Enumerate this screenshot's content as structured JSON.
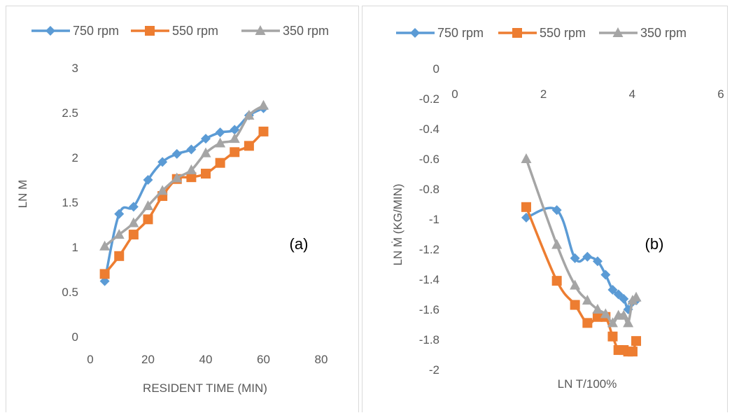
{
  "chart_data": [
    {
      "type": "line",
      "panel_label": "(a)",
      "xlabel": "RESIDENT TIME (MIN)",
      "ylabel": "LN M",
      "xlim": [
        0,
        80
      ],
      "ylim": [
        0,
        3
      ],
      "xticks": [
        "0",
        "20",
        "40",
        "60",
        "80"
      ],
      "yticks": [
        "0",
        "0.5",
        "1",
        "1.5",
        "2",
        "2.5",
        "3"
      ],
      "xtick_values": [
        0,
        20,
        40,
        60,
        80
      ],
      "ytick_values": [
        0,
        0.5,
        1,
        1.5,
        2,
        2.5,
        3
      ],
      "grid": false,
      "legend_position": "top",
      "series": [
        {
          "name": "750 rpm",
          "color": "#5b9bd5",
          "marker": "diamond",
          "x": [
            5,
            10,
            15,
            20,
            25,
            30,
            35,
            40,
            45,
            50,
            55,
            60
          ],
          "y": [
            0.62,
            1.37,
            1.45,
            1.75,
            1.95,
            2.04,
            2.09,
            2.21,
            2.28,
            2.31,
            2.47,
            2.55
          ]
        },
        {
          "name": "550 rpm",
          "color": "#ed7d31",
          "marker": "square",
          "x": [
            5,
            10,
            15,
            20,
            25,
            30,
            35,
            40,
            45,
            50,
            55,
            60
          ],
          "y": [
            0.7,
            0.9,
            1.14,
            1.31,
            1.57,
            1.76,
            1.78,
            1.82,
            1.94,
            2.06,
            2.13,
            2.29
          ]
        },
        {
          "name": "350 rpm",
          "color": "#a5a5a5",
          "marker": "triangle",
          "x": [
            5,
            10,
            15,
            20,
            25,
            30,
            35,
            40,
            45,
            50,
            55,
            60
          ],
          "y": [
            1.01,
            1.14,
            1.27,
            1.46,
            1.63,
            1.77,
            1.86,
            2.05,
            2.16,
            2.21,
            2.47,
            2.58
          ]
        }
      ]
    },
    {
      "type": "line",
      "panel_label": "(b)",
      "xlabel": "LN T/100%",
      "ylabel": "LN Ṁ (KG/MIN)",
      "xlim": [
        0,
        6
      ],
      "ylim": [
        -2,
        0
      ],
      "xticks": [
        "0",
        "2",
        "4",
        "6"
      ],
      "yticks": [
        "-2",
        "-1.8",
        "-1.6",
        "-1.4",
        "-1.2",
        "-1",
        "-0.8",
        "-0.6",
        "-0.4",
        "-0.2",
        "0"
      ],
      "xtick_values": [
        0,
        2,
        4,
        6
      ],
      "ytick_values": [
        -2,
        -1.8,
        -1.6,
        -1.4,
        -1.2,
        -1,
        -0.8,
        -0.6,
        -0.4,
        -0.2,
        0
      ],
      "grid": false,
      "legend_position": "top",
      "series": [
        {
          "name": "750 rpm",
          "color": "#5b9bd5",
          "marker": "diamond",
          "x": [
            1.61,
            2.3,
            2.71,
            2.99,
            3.22,
            3.4,
            3.56,
            3.69,
            3.81,
            3.91,
            4.01,
            4.09
          ],
          "y": [
            -0.99,
            -0.94,
            -1.26,
            -1.25,
            -1.28,
            -1.37,
            -1.47,
            -1.5,
            -1.53,
            -1.6,
            -1.55,
            -1.54
          ]
        },
        {
          "name": "550 rpm",
          "color": "#ed7d31",
          "marker": "square",
          "x": [
            1.61,
            2.3,
            2.71,
            2.99,
            3.22,
            3.4,
            3.56,
            3.69,
            3.81,
            3.91,
            4.01,
            4.09
          ],
          "y": [
            -0.92,
            -1.41,
            -1.57,
            -1.69,
            -1.65,
            -1.65,
            -1.78,
            -1.87,
            -1.87,
            -1.88,
            -1.88,
            -1.81
          ]
        },
        {
          "name": "350 rpm",
          "color": "#a5a5a5",
          "marker": "triangle",
          "x": [
            1.61,
            2.3,
            2.71,
            2.99,
            3.22,
            3.4,
            3.56,
            3.69,
            3.81,
            3.91,
            4.01,
            4.09
          ],
          "y": [
            -0.6,
            -1.17,
            -1.44,
            -1.54,
            -1.6,
            -1.63,
            -1.69,
            -1.64,
            -1.64,
            -1.69,
            -1.54,
            -1.52
          ]
        }
      ]
    }
  ]
}
